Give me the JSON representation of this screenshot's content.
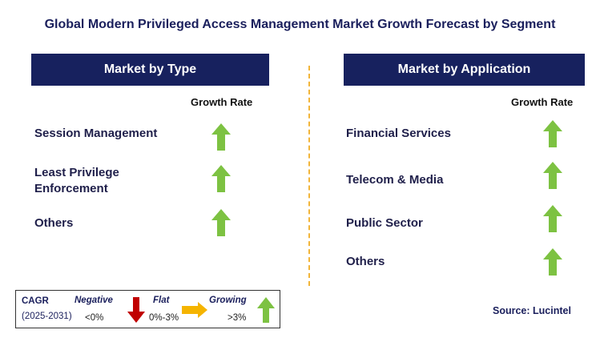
{
  "title": "Global Modern Privileged Access Management Market Growth Forecast by Segment",
  "left_panel": {
    "header": "Market by Type",
    "column_label": "Growth Rate",
    "items": [
      {
        "label": "Session Management",
        "trend": "growing"
      },
      {
        "label": "Least Privilege Enforcement",
        "trend": "growing"
      },
      {
        "label": "Others",
        "trend": "growing"
      }
    ]
  },
  "right_panel": {
    "header": "Market by Application",
    "column_label": "Growth Rate",
    "items": [
      {
        "label": "Financial Services",
        "trend": "growing"
      },
      {
        "label": "Telecom & Media",
        "trend": "growing"
      },
      {
        "label": "Public Sector",
        "trend": "growing"
      },
      {
        "label": "Others",
        "trend": "growing"
      }
    ]
  },
  "legend": {
    "cagr_label": "CAGR",
    "period": "(2025-2031)",
    "negative_label": "Negative",
    "negative_range": "<0%",
    "flat_label": "Flat",
    "flat_range": "0%-3%",
    "growing_label": "Growing",
    "growing_range": ">3%"
  },
  "source": "Source: Lucintel",
  "colors": {
    "header_bg": "#17215e",
    "growing": "#7dc242",
    "negative": "#c00000",
    "flat": "#f5b400",
    "divider": "#f2b53a"
  }
}
